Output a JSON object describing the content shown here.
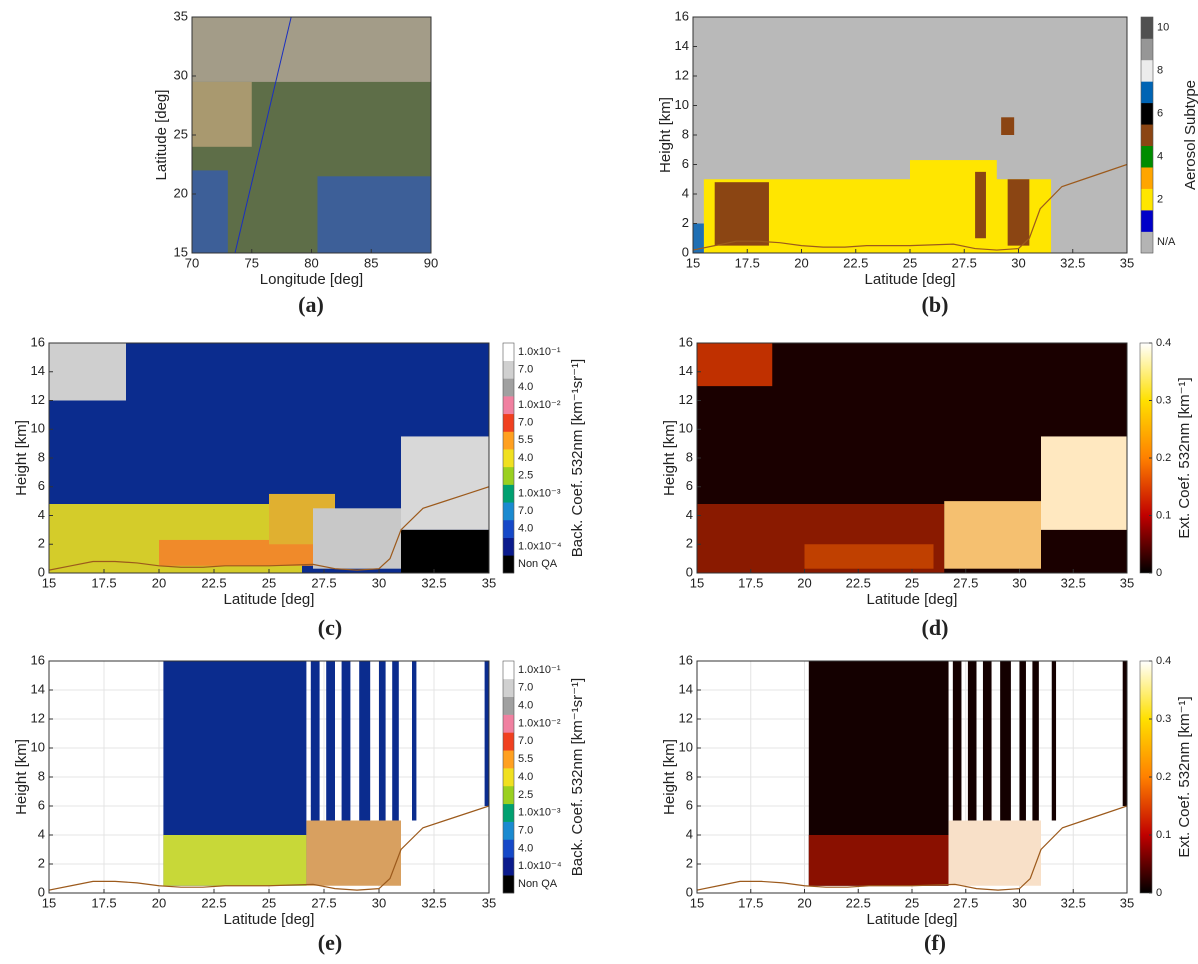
{
  "chart_data": [
    {
      "type": "map",
      "caption": "(a)",
      "xlabel": "Longitude [deg]",
      "ylabel": "Latitude [deg]",
      "xlim": [
        70,
        90
      ],
      "ylim": [
        15,
        35
      ],
      "xticks": [
        70,
        75,
        80,
        85,
        90
      ],
      "yticks": [
        15,
        20,
        25,
        30,
        35
      ],
      "background": "#5e6e48",
      "regions": [
        {
          "x": [
            70,
            73
          ],
          "y": [
            15,
            22
          ],
          "color": "#3d5f98"
        },
        {
          "x": [
            80.5,
            90
          ],
          "y": [
            15,
            21.5
          ],
          "color": "#3d5f98"
        },
        {
          "x": [
            70,
            75
          ],
          "y": [
            24,
            29.5
          ],
          "color": "#a9996f"
        },
        {
          "x": [
            70,
            90
          ],
          "y": [
            29.5,
            35
          ],
          "color": "#a39c88"
        }
      ],
      "track": {
        "x": [
          73.6,
          78.3
        ],
        "y": [
          15,
          35
        ],
        "color": "#1a2fc0"
      }
    },
    {
      "type": "curtain",
      "caption": "(b)",
      "xlabel": "Latitude [deg]",
      "ylabel": "Height [km]",
      "xlim": [
        15,
        35
      ],
      "ylim": [
        0,
        16
      ],
      "xticks": [
        15,
        17.5,
        20,
        22.5,
        25,
        27.5,
        30,
        32.5,
        35
      ],
      "yticks": [
        0,
        2,
        4,
        6,
        8,
        10,
        12,
        14,
        16
      ],
      "background": "#b9b9b9",
      "regions": [
        {
          "x": [
            15.5,
            31.5
          ],
          "y": [
            0,
            5
          ],
          "color": "#ffe600"
        },
        {
          "x": [
            25,
            29
          ],
          "y": [
            4.5,
            6.3
          ],
          "color": "#ffe600"
        },
        {
          "x": [
            16,
            18.5
          ],
          "y": [
            0.5,
            4.8
          ],
          "color": "#8b4513"
        },
        {
          "x": [
            28,
            28.5
          ],
          "y": [
            1,
            5.5
          ],
          "color": "#8b4513"
        },
        {
          "x": [
            29.5,
            30.5
          ],
          "y": [
            0.5,
            5
          ],
          "color": "#8b4513"
        },
        {
          "x": [
            29.2,
            29.8
          ],
          "y": [
            8,
            9.2
          ],
          "color": "#8b4513"
        },
        {
          "x": [
            15,
            15.5
          ],
          "y": [
            0,
            2
          ],
          "color": "#1f6fb4"
        }
      ],
      "surface": {
        "x": [
          15,
          16,
          17,
          18,
          19,
          20,
          21,
          22,
          23,
          25,
          27,
          28,
          29,
          30,
          30.5,
          31,
          32,
          33,
          34,
          35
        ],
        "y": [
          0.2,
          0.5,
          0.8,
          0.8,
          0.7,
          0.5,
          0.4,
          0.4,
          0.5,
          0.5,
          0.6,
          0.3,
          0.2,
          0.3,
          1,
          3,
          4.5,
          5,
          5.5,
          6
        ],
        "color": "#9c5a1c"
      },
      "colorbar": {
        "label": "Aerosol Subtype",
        "colors": [
          "#b4b4b4",
          "#0000c8",
          "#ffe600",
          "#ffa500",
          "#008c00",
          "#8b4513",
          "#000000",
          "#0064b4",
          "#ececec",
          "#969696",
          "#505050"
        ],
        "labels": [
          "N/A",
          null,
          "2",
          null,
          "4",
          null,
          "6",
          null,
          "8",
          null,
          "10"
        ]
      }
    },
    {
      "type": "curtain",
      "caption": "(c)",
      "xlabel": "Latitude [deg]",
      "ylabel": "Height [km]",
      "xlim": [
        15,
        35
      ],
      "ylim": [
        0,
        16
      ],
      "xticks": [
        15,
        17.5,
        20,
        22.5,
        25,
        27.5,
        30,
        32.5,
        35
      ],
      "yticks": [
        0,
        2,
        4,
        6,
        8,
        10,
        12,
        14,
        16
      ],
      "background": "#0b2c8e",
      "regions": [
        {
          "x": [
            15,
            26.5
          ],
          "y": [
            0,
            4.8
          ],
          "color": "#d4cc2a"
        },
        {
          "x": [
            20,
            31
          ],
          "y": [
            0.5,
            2.3
          ],
          "color": "#f08a2a"
        },
        {
          "x": [
            25,
            28
          ],
          "y": [
            2,
            5.5
          ],
          "color": "#e0b030"
        },
        {
          "x": [
            27,
            31
          ],
          "y": [
            0.3,
            4.5
          ],
          "color": "#c8c8c8"
        },
        {
          "x": [
            31,
            35
          ],
          "y": [
            3,
            9.5
          ],
          "color": "#d8d8d8"
        },
        {
          "x": [
            15,
            18.5
          ],
          "y": [
            12,
            16
          ],
          "color": "#cfcfcf"
        },
        {
          "x": [
            31,
            35
          ],
          "y": [
            0,
            3
          ],
          "color": "#000000"
        }
      ],
      "surface": {
        "x": [
          15,
          16,
          17,
          18,
          19,
          20,
          21,
          22,
          23,
          25,
          27,
          28,
          29,
          30,
          30.5,
          31,
          32,
          33,
          34,
          35
        ],
        "y": [
          0.2,
          0.5,
          0.8,
          0.8,
          0.7,
          0.5,
          0.4,
          0.4,
          0.5,
          0.5,
          0.6,
          0.3,
          0.2,
          0.3,
          1,
          3,
          4.5,
          5,
          5.5,
          6
        ],
        "color": "#9c5a1c"
      },
      "colorbar": {
        "label": "Back. Coef. 532nm [km⁻¹sr⁻¹]",
        "colors": [
          "#000000",
          "#0a1a8c",
          "#1548c8",
          "#1a8ad0",
          "#00a070",
          "#9ad020",
          "#f0e020",
          "#ffa020",
          "#f04020",
          "#f080a0",
          "#a0a0a0",
          "#d0d0d0",
          "#ffffff"
        ],
        "labels": [
          "Non QA",
          "1.0x10⁻⁴",
          "4.0",
          "7.0",
          "1.0x10⁻³",
          "2.5",
          "4.0",
          "5.5",
          "7.0",
          "1.0x10⁻²",
          "4.0",
          "7.0",
          "1.0x10⁻¹"
        ]
      }
    },
    {
      "type": "curtain",
      "caption": "(d)",
      "xlabel": "Latitude [deg]",
      "ylabel": "Height [km]",
      "xlim": [
        15,
        35
      ],
      "ylim": [
        0,
        16
      ],
      "xticks": [
        15,
        17.5,
        20,
        22.5,
        25,
        27.5,
        30,
        32.5,
        35
      ],
      "yticks": [
        0,
        2,
        4,
        6,
        8,
        10,
        12,
        14,
        16
      ],
      "background": "#1a0000",
      "regions": [
        {
          "x": [
            15,
            26.5
          ],
          "y": [
            0,
            4.8
          ],
          "color": "#8a1a00"
        },
        {
          "x": [
            20,
            26
          ],
          "y": [
            0.3,
            2
          ],
          "color": "#c04000"
        },
        {
          "x": [
            26.5,
            31
          ],
          "y": [
            0.3,
            5
          ],
          "color": "#f5c070"
        },
        {
          "x": [
            31,
            35
          ],
          "y": [
            3,
            9.5
          ],
          "color": "#ffe8c0"
        },
        {
          "x": [
            15,
            18.5
          ],
          "y": [
            13,
            16
          ],
          "color": "#c03000"
        }
      ],
      "colorbar": {
        "label": "Ext. Coef. 532nm [km⁻¹]",
        "colors": [
          "#000000",
          "#c00000",
          "#ff8000",
          "#ffe000",
          "#ffffff"
        ],
        "clim": [
          0,
          0.4
        ],
        "cticks": [
          0,
          0.1,
          0.2,
          0.3,
          0.4
        ]
      }
    },
    {
      "type": "curtain",
      "caption": "(e)",
      "xlabel": "Latitude [deg]",
      "ylabel": "Height [km]",
      "grid": true,
      "xlim": [
        15,
        35
      ],
      "ylim": [
        0,
        16
      ],
      "xticks": [
        15,
        17.5,
        20,
        22.5,
        25,
        27.5,
        30,
        32.5,
        35
      ],
      "yticks": [
        0,
        2,
        4,
        6,
        8,
        10,
        12,
        14,
        16
      ],
      "background": "#ffffff",
      "regions": [
        {
          "x": [
            20.2,
            26.7
          ],
          "y": [
            0.5,
            16
          ],
          "color": "#0b2c8e"
        },
        {
          "x": [
            26.9,
            27.3
          ],
          "y": [
            5,
            16
          ],
          "color": "#0b2c8e"
        },
        {
          "x": [
            27.6,
            28
          ],
          "y": [
            5,
            16
          ],
          "color": "#0b2c8e"
        },
        {
          "x": [
            28.3,
            28.7
          ],
          "y": [
            5,
            16
          ],
          "color": "#0b2c8e"
        },
        {
          "x": [
            29.1,
            29.6
          ],
          "y": [
            5,
            16
          ],
          "color": "#0b2c8e"
        },
        {
          "x": [
            30,
            30.3
          ],
          "y": [
            5,
            16
          ],
          "color": "#0b2c8e"
        },
        {
          "x": [
            30.6,
            30.9
          ],
          "y": [
            5,
            16
          ],
          "color": "#0b2c8e"
        },
        {
          "x": [
            31.5,
            31.7
          ],
          "y": [
            5,
            16
          ],
          "color": "#0b2c8e"
        },
        {
          "x": [
            34.8,
            35
          ],
          "y": [
            6,
            16
          ],
          "color": "#0b2c8e"
        },
        {
          "x": [
            20.2,
            26.7
          ],
          "y": [
            0.5,
            4
          ],
          "color": "#c8d838"
        },
        {
          "x": [
            26.7,
            31
          ],
          "y": [
            0.5,
            5
          ],
          "color": "#d8a060"
        }
      ],
      "surface": {
        "x": [
          15,
          16,
          17,
          18,
          19,
          20,
          21,
          22,
          23,
          25,
          27,
          28,
          29,
          30,
          30.5,
          31,
          32,
          33,
          34,
          35
        ],
        "y": [
          0.2,
          0.5,
          0.8,
          0.8,
          0.7,
          0.5,
          0.4,
          0.4,
          0.5,
          0.5,
          0.6,
          0.3,
          0.2,
          0.3,
          1,
          3,
          4.5,
          5,
          5.5,
          6
        ],
        "color": "#9c5a1c"
      },
      "colorbar": {
        "label": "Back. Coef. 532nm [km⁻¹sr⁻¹]",
        "colors": [
          "#000000",
          "#0a1a8c",
          "#1548c8",
          "#1a8ad0",
          "#00a070",
          "#9ad020",
          "#f0e020",
          "#ffa020",
          "#f04020",
          "#f080a0",
          "#a0a0a0",
          "#d0d0d0",
          "#ffffff"
        ],
        "labels": [
          "Non QA",
          "1.0x10⁻⁴",
          "4.0",
          "7.0",
          "1.0x10⁻³",
          "2.5",
          "4.0",
          "5.5",
          "7.0",
          "1.0x10⁻²",
          "4.0",
          "7.0",
          "1.0x10⁻¹"
        ]
      }
    },
    {
      "type": "curtain",
      "caption": "(f)",
      "xlabel": "Latitude [deg]",
      "ylabel": "Height [km]",
      "grid": true,
      "xlim": [
        15,
        35
      ],
      "ylim": [
        0,
        16
      ],
      "xticks": [
        15,
        17.5,
        20,
        22.5,
        25,
        27.5,
        30,
        32.5,
        35
      ],
      "yticks": [
        0,
        2,
        4,
        6,
        8,
        10,
        12,
        14,
        16
      ],
      "background": "#ffffff",
      "regions": [
        {
          "x": [
            20.2,
            26.7
          ],
          "y": [
            0.5,
            16
          ],
          "color": "#140000"
        },
        {
          "x": [
            26.9,
            27.3
          ],
          "y": [
            5,
            16
          ],
          "color": "#140000"
        },
        {
          "x": [
            27.6,
            28
          ],
          "y": [
            5,
            16
          ],
          "color": "#140000"
        },
        {
          "x": [
            28.3,
            28.7
          ],
          "y": [
            5,
            16
          ],
          "color": "#140000"
        },
        {
          "x": [
            29.1,
            29.6
          ],
          "y": [
            5,
            16
          ],
          "color": "#140000"
        },
        {
          "x": [
            30,
            30.3
          ],
          "y": [
            5,
            16
          ],
          "color": "#140000"
        },
        {
          "x": [
            30.6,
            30.9
          ],
          "y": [
            5,
            16
          ],
          "color": "#140000"
        },
        {
          "x": [
            31.5,
            31.7
          ],
          "y": [
            5,
            16
          ],
          "color": "#140000"
        },
        {
          "x": [
            34.8,
            35
          ],
          "y": [
            6,
            16
          ],
          "color": "#140000"
        },
        {
          "x": [
            20.2,
            26.7
          ],
          "y": [
            0.5,
            4
          ],
          "color": "#8a1000"
        },
        {
          "x": [
            26.7,
            31
          ],
          "y": [
            0.5,
            5
          ],
          "color": "#f8e0c8"
        }
      ],
      "surface": {
        "x": [
          15,
          16,
          17,
          18,
          19,
          20,
          21,
          22,
          23,
          25,
          27,
          28,
          29,
          30,
          30.5,
          31,
          32,
          33,
          34,
          35
        ],
        "y": [
          0.2,
          0.5,
          0.8,
          0.8,
          0.7,
          0.5,
          0.4,
          0.4,
          0.5,
          0.5,
          0.6,
          0.3,
          0.2,
          0.3,
          1,
          3,
          4.5,
          5,
          5.5,
          6
        ],
        "color": "#9c5a1c"
      },
      "colorbar": {
        "label": "Ext. Coef. 532nm [km⁻¹]",
        "colors": [
          "#000000",
          "#c00000",
          "#ff8000",
          "#ffe000",
          "#ffffff"
        ],
        "clim": [
          0,
          0.4
        ],
        "cticks": [
          0,
          0.1,
          0.2,
          0.3,
          0.4
        ]
      }
    }
  ]
}
